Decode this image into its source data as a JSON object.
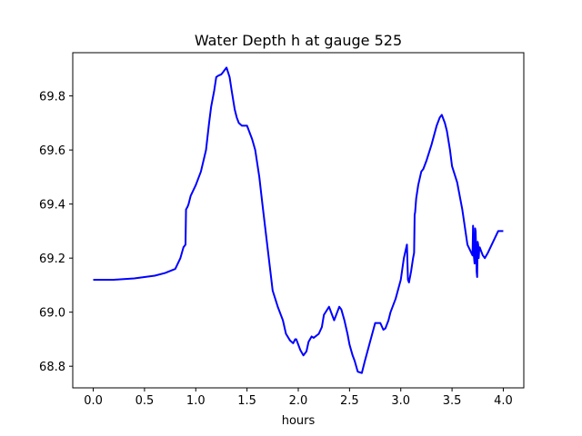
{
  "chart_data": {
    "type": "line",
    "title": "Water Depth h at gauge 525",
    "xlabel": "hours",
    "ylabel": "",
    "xlim": [
      -0.2,
      4.2
    ],
    "ylim": [
      68.72,
      69.96
    ],
    "xticks": [
      0.0,
      0.5,
      1.0,
      1.5,
      2.0,
      2.5,
      3.0,
      3.5,
      4.0
    ],
    "xtick_labels": [
      "0.0",
      "0.5",
      "1.0",
      "1.5",
      "2.0",
      "2.5",
      "3.0",
      "3.5",
      "4.0"
    ],
    "yticks": [
      68.8,
      69.0,
      69.2,
      69.4,
      69.6,
      69.8
    ],
    "ytick_labels": [
      "68.8",
      "69.0",
      "69.2",
      "69.4",
      "69.6",
      "69.8"
    ],
    "grid": false,
    "series": [
      {
        "color": "#0000ff",
        "x": [
          0.0,
          0.2,
          0.4,
          0.6,
          0.7,
          0.8,
          0.85,
          0.88,
          0.9,
          0.905,
          0.92,
          0.93,
          0.95,
          1.0,
          1.05,
          1.1,
          1.13,
          1.15,
          1.18,
          1.2,
          1.22,
          1.25,
          1.28,
          1.3,
          1.33,
          1.35,
          1.38,
          1.4,
          1.42,
          1.45,
          1.5,
          1.55,
          1.58,
          1.62,
          1.65,
          1.7,
          1.75,
          1.8,
          1.85,
          1.88,
          1.92,
          1.95,
          1.97,
          1.98,
          2.0,
          2.02,
          2.05,
          2.08,
          2.1,
          2.13,
          2.15,
          2.2,
          2.23,
          2.25,
          2.3,
          2.35,
          2.38,
          2.4,
          2.42,
          2.45,
          2.48,
          2.5,
          2.53,
          2.55,
          2.58,
          2.62,
          2.65,
          2.7,
          2.75,
          2.8,
          2.83,
          2.85,
          2.88,
          2.9,
          2.95,
          3.0,
          3.03,
          3.06,
          3.07,
          3.08,
          3.1,
          3.12,
          3.13,
          3.135,
          3.14,
          3.15,
          3.17,
          3.2,
          3.22,
          3.25,
          3.3,
          3.35,
          3.38,
          3.4,
          3.43,
          3.45,
          3.48,
          3.5,
          3.55,
          3.6,
          3.65,
          3.7,
          3.705,
          3.71,
          3.72,
          3.725,
          3.73,
          3.735,
          3.74,
          3.745,
          3.75,
          3.755,
          3.76,
          3.765,
          3.77,
          3.78,
          3.8,
          3.82,
          3.85,
          3.9,
          3.95,
          4.0
        ],
        "y": [
          69.12,
          69.12,
          69.125,
          69.135,
          69.145,
          69.16,
          69.2,
          69.24,
          69.25,
          69.38,
          69.39,
          69.4,
          69.43,
          69.47,
          69.52,
          69.6,
          69.7,
          69.76,
          69.82,
          69.87,
          69.875,
          69.88,
          69.895,
          69.905,
          69.87,
          69.82,
          69.75,
          69.72,
          69.7,
          69.69,
          69.69,
          69.64,
          69.6,
          69.5,
          69.4,
          69.24,
          69.08,
          69.02,
          68.97,
          68.92,
          68.895,
          68.885,
          68.9,
          68.9,
          68.88,
          68.86,
          68.84,
          68.855,
          68.89,
          68.91,
          68.905,
          68.92,
          68.945,
          68.99,
          69.02,
          68.97,
          69.0,
          69.02,
          69.01,
          68.97,
          68.92,
          68.88,
          68.84,
          68.82,
          68.78,
          68.775,
          68.82,
          68.89,
          68.96,
          68.96,
          68.935,
          68.94,
          68.97,
          69.0,
          69.05,
          69.12,
          69.2,
          69.25,
          69.12,
          69.11,
          69.15,
          69.2,
          69.22,
          69.36,
          69.37,
          69.42,
          69.47,
          69.52,
          69.53,
          69.56,
          69.62,
          69.69,
          69.72,
          69.73,
          69.7,
          69.67,
          69.6,
          69.54,
          69.48,
          69.38,
          69.25,
          69.21,
          69.32,
          69.22,
          69.18,
          69.31,
          69.3,
          69.23,
          69.15,
          69.13,
          69.26,
          69.25,
          69.2,
          69.23,
          69.24,
          69.23,
          69.21,
          69.2,
          69.22,
          69.26,
          69.3,
          69.3
        ]
      }
    ]
  }
}
